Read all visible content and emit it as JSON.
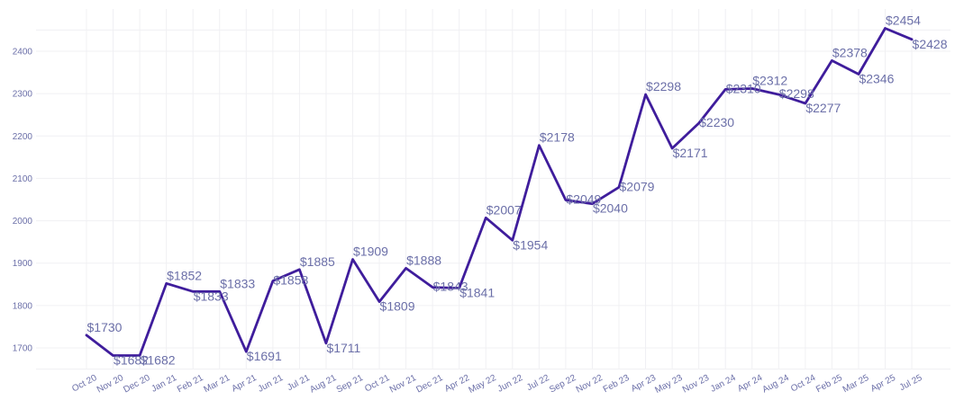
{
  "colors": {
    "line": "#3f1d9c",
    "label": "#6b6fa8",
    "grid": "#f0f0f3",
    "background": "#ffffff"
  },
  "chart_data": {
    "type": "line",
    "title": "",
    "xlabel": "",
    "ylabel": "",
    "ylim": [
      1640,
      2480
    ],
    "yticks": [
      1700,
      1800,
      1900,
      2000,
      2100,
      2200,
      2300,
      2400
    ],
    "grid": true,
    "label_prefix": "$",
    "categories": [
      "Oct 20",
      "Nov 20",
      "Dec 20",
      "Jan 21",
      "Feb 21",
      "Mar 21",
      "Apr 21",
      "Jun 21",
      "Jul 21",
      "Aug 21",
      "Sep 21",
      "Oct 21",
      "Nov 21",
      "Dec 21",
      "Apr 22",
      "May 22",
      "Jun 22",
      "Jul 22",
      "Sep 22",
      "Nov 22",
      "Feb 23",
      "Apr 23",
      "May 23",
      "Nov 23",
      "Jan 24",
      "Apr 24",
      "Aug 24",
      "Oct 24",
      "Feb 25",
      "Mar 25",
      "Apr 25",
      "Jul 25"
    ],
    "series": [
      {
        "values": [
          1730,
          1682,
          1682,
          1852,
          1833,
          1833,
          1691,
          1858,
          1885,
          1711,
          1909,
          1809,
          1888,
          1843,
          1841,
          2007,
          1954,
          2178,
          2049,
          2040,
          2079,
          2298,
          2171,
          2230,
          2310,
          2312,
          2298,
          2277,
          2378,
          2346,
          2454,
          2428
        ]
      }
    ]
  }
}
